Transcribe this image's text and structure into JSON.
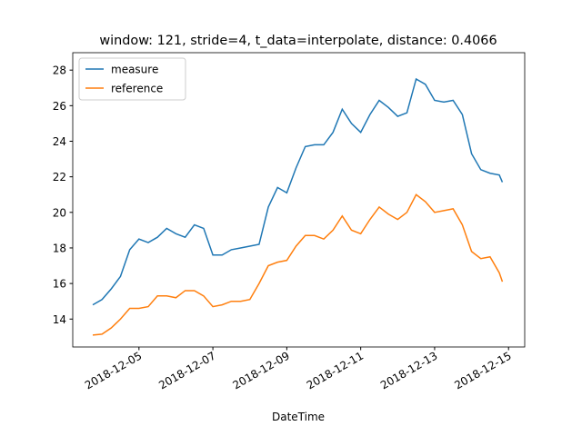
{
  "chart_data": {
    "type": "line",
    "title": "window: 121, stride=4, t_data=interpolate, distance: 0.4066",
    "x_label": "DateTime",
    "x": [
      "2018-12-03T18:00",
      "2018-12-04T00:00",
      "2018-12-04T06:00",
      "2018-12-04T12:00",
      "2018-12-04T18:00",
      "2018-12-05T00:00",
      "2018-12-05T06:00",
      "2018-12-05T12:00",
      "2018-12-05T18:00",
      "2018-12-06T00:00",
      "2018-12-06T06:00",
      "2018-12-06T12:00",
      "2018-12-06T18:00",
      "2018-12-07T00:00",
      "2018-12-07T06:00",
      "2018-12-07T12:00",
      "2018-12-07T18:00",
      "2018-12-08T00:00",
      "2018-12-08T06:00",
      "2018-12-08T12:00",
      "2018-12-08T18:00",
      "2018-12-09T00:00",
      "2018-12-09T06:00",
      "2018-12-09T12:00",
      "2018-12-09T18:00",
      "2018-12-10T00:00",
      "2018-12-10T06:00",
      "2018-12-10T12:00",
      "2018-12-10T18:00",
      "2018-12-11T00:00",
      "2018-12-11T06:00",
      "2018-12-11T12:00",
      "2018-12-11T18:00",
      "2018-12-12T00:00",
      "2018-12-12T06:00",
      "2018-12-12T12:00",
      "2018-12-12T18:00",
      "2018-12-13T00:00",
      "2018-12-13T06:00",
      "2018-12-13T12:00",
      "2018-12-13T18:00",
      "2018-12-14T00:00",
      "2018-12-14T06:00",
      "2018-12-14T12:00",
      "2018-12-14T18:00",
      "2018-12-14T20:00"
    ],
    "series": [
      {
        "name": "measure",
        "color": "#1f77b4",
        "values": [
          14.8,
          15.1,
          15.7,
          16.4,
          17.9,
          18.5,
          18.3,
          18.6,
          19.1,
          18.8,
          18.6,
          19.3,
          19.1,
          17.6,
          17.6,
          17.9,
          18.0,
          18.1,
          18.2,
          20.3,
          21.4,
          21.1,
          22.5,
          23.7,
          23.8,
          23.8,
          24.5,
          25.8,
          25.0,
          24.5,
          25.5,
          26.3,
          25.9,
          25.4,
          25.6,
          27.5,
          27.2,
          26.3,
          26.2,
          26.3,
          25.5,
          23.3,
          22.4,
          22.2,
          22.1,
          21.7
        ]
      },
      {
        "name": "reference",
        "color": "#ff7f0e",
        "values": [
          13.1,
          13.15,
          13.5,
          14.0,
          14.6,
          14.6,
          14.7,
          15.3,
          15.3,
          15.2,
          15.6,
          15.6,
          15.3,
          14.7,
          14.8,
          15.0,
          15.0,
          15.1,
          16.0,
          17.0,
          17.2,
          17.3,
          18.1,
          18.7,
          18.7,
          18.5,
          19.0,
          19.8,
          19.0,
          18.8,
          19.6,
          20.3,
          19.9,
          19.6,
          20.0,
          21.0,
          20.6,
          20.0,
          20.1,
          20.2,
          19.3,
          17.8,
          17.4,
          17.5,
          16.6,
          16.1
        ]
      }
    ],
    "xlim": [
      "2018-12-03T05:00",
      "2018-12-15T10:30"
    ],
    "xticks": [
      "2018-12-05",
      "2018-12-07",
      "2018-12-09",
      "2018-12-11",
      "2018-12-13",
      "2018-12-15"
    ],
    "ylim": [
      12.43,
      28.98
    ],
    "yticks": [
      14,
      16,
      18,
      20,
      22,
      24,
      26,
      28
    ],
    "legend": "upper left"
  }
}
